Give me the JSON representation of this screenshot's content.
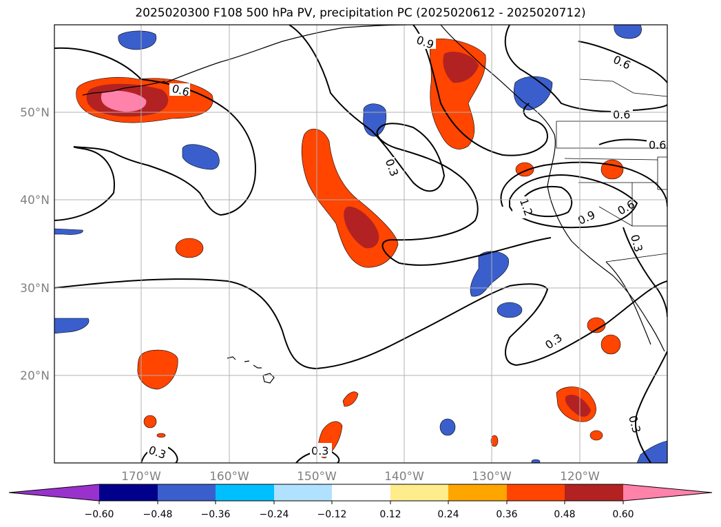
{
  "title": "2025020300 F108 500 hPa PV, precipitation PC (2025020612 - 2025020712)",
  "map": {
    "projection": "plate carree",
    "lon_range": [
      -180,
      -110
    ],
    "lat_range": [
      10,
      60
    ],
    "lat_ticks": [
      {
        "value": 50,
        "label": "50°N"
      },
      {
        "value": 40,
        "label": "40°N"
      },
      {
        "value": 30,
        "label": "30°N"
      },
      {
        "value": 20,
        "label": "20°N"
      }
    ],
    "lon_ticks": [
      {
        "value": -170,
        "label": "170°W"
      },
      {
        "value": -160,
        "label": "160°W"
      },
      {
        "value": -150,
        "label": "150°W"
      },
      {
        "value": -140,
        "label": "140°W"
      },
      {
        "value": -130,
        "label": "130°W"
      },
      {
        "value": -120,
        "label": "120°W"
      }
    ],
    "gridlines": true,
    "contour_labels": [
      "0.6",
      "0.3",
      "0.9",
      "0.6",
      "0.6",
      "0.6",
      "0.9",
      "0.6",
      "1.2",
      "0.3",
      "0.3",
      "0.3",
      "0.3",
      "0.3"
    ]
  },
  "colorbar": {
    "ticks": [
      "−0.60",
      "−0.48",
      "−0.36",
      "−0.24",
      "−0.12",
      "0.12",
      "0.24",
      "0.36",
      "0.48",
      "0.60"
    ],
    "colors": [
      "#9932cc",
      "#00008b",
      "#3a5fcd",
      "#00bfff",
      "#b0e2ff",
      "#ffffff",
      "#ffec8b",
      "#ffa500",
      "#ff4500",
      "#b22222",
      "#ff82ab"
    ],
    "extend": "both"
  },
  "colors": {
    "strong_positive": "#ff4500",
    "very_strong_positive": "#b22222",
    "extreme_positive": "#ff82ab",
    "strong_negative": "#3a5fcd"
  }
}
